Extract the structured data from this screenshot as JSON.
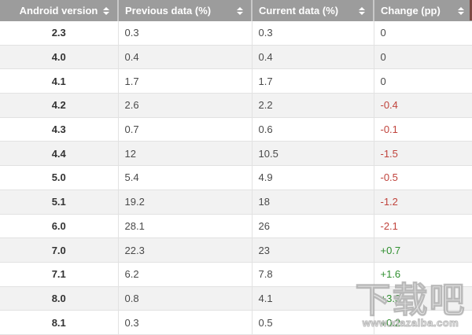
{
  "table": {
    "headers": [
      {
        "label": "Android version"
      },
      {
        "label": "Previous data (%)"
      },
      {
        "label": "Current data (%)"
      },
      {
        "label": "Change (pp)"
      }
    ],
    "rows": [
      {
        "version": "2.3",
        "previous": "0.3",
        "current": "0.3",
        "change": "0"
      },
      {
        "version": "4.0",
        "previous": "0.4",
        "current": "0.4",
        "change": "0"
      },
      {
        "version": "4.1",
        "previous": "1.7",
        "current": "1.7",
        "change": "0"
      },
      {
        "version": "4.2",
        "previous": "2.6",
        "current": "2.2",
        "change": "-0.4"
      },
      {
        "version": "4.3",
        "previous": "0.7",
        "current": "0.6",
        "change": "-0.1"
      },
      {
        "version": "4.4",
        "previous": "12",
        "current": "10.5",
        "change": "-1.5"
      },
      {
        "version": "5.0",
        "previous": "5.4",
        "current": "4.9",
        "change": "-0.5"
      },
      {
        "version": "5.1",
        "previous": "19.2",
        "current": "18",
        "change": "-1.2"
      },
      {
        "version": "6.0",
        "previous": "28.1",
        "current": "26",
        "change": "-2.1"
      },
      {
        "version": "7.0",
        "previous": "22.3",
        "current": "23",
        "change": "+0.7"
      },
      {
        "version": "7.1",
        "previous": "6.2",
        "current": "7.8",
        "change": "+1.6"
      },
      {
        "version": "8.0",
        "previous": "0.8",
        "current": "4.1",
        "change": "+3.3"
      },
      {
        "version": "8.1",
        "previous": "0.3",
        "current": "0.5",
        "change": "+0.2"
      }
    ]
  },
  "colors": {
    "header_bg": "#9c9c9c",
    "positive_change": "#2f8f2f",
    "negative_change": "#c0433c",
    "zero_change": "#4a4a4a",
    "row_alt_bg": "#f2f2f2"
  },
  "icons": {
    "sort": "up-down-triangles"
  },
  "watermark": {
    "title": "下载吧",
    "url": "www.xiazaiba.com"
  }
}
